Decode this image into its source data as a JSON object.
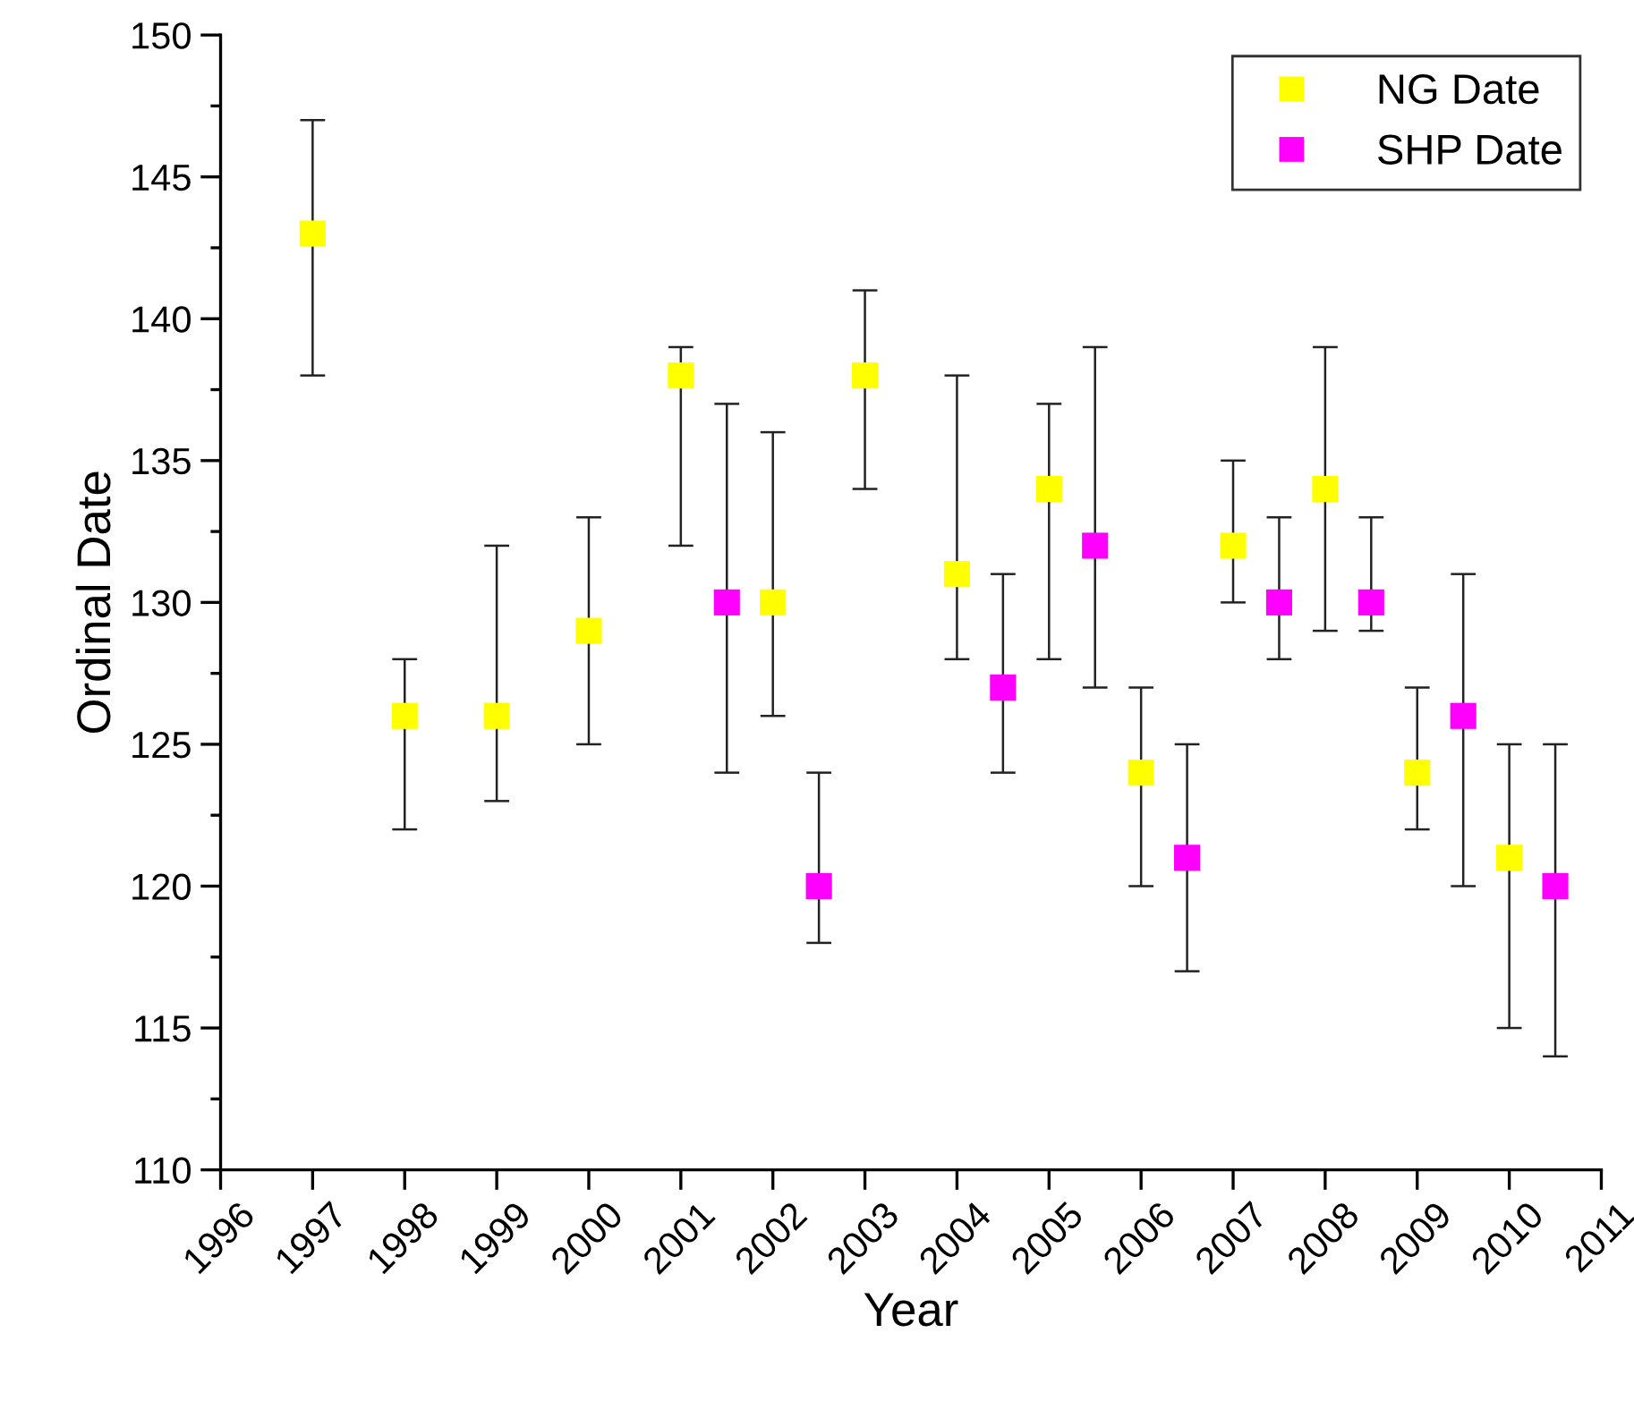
{
  "chart_data": {
    "type": "scatter",
    "xlabel": "Year",
    "ylabel": "Ordinal Date",
    "xlim": [
      1996,
      2011
    ],
    "xticks": [
      1996,
      1997,
      1998,
      1999,
      2000,
      2001,
      2002,
      2003,
      2004,
      2005,
      2006,
      2007,
      2008,
      2009,
      2010,
      2011
    ],
    "ylim": [
      110,
      150
    ],
    "yticks": [
      110,
      115,
      120,
      125,
      130,
      135,
      140,
      145,
      150
    ],
    "grid": false,
    "legend": "top right",
    "marker": "square",
    "series": [
      {
        "name": "NG Date",
        "color": "#ffff00",
        "x": [
          1997,
          1998,
          1999,
          2000,
          2001,
          2002,
          2003,
          2004,
          2005,
          2006,
          2007,
          2008,
          2009,
          2010
        ],
        "values": [
          143,
          126,
          126,
          129,
          138,
          130,
          138,
          131,
          134,
          124,
          132,
          134,
          124,
          121
        ],
        "errors": [
          [
            138,
            147
          ],
          [
            122,
            128
          ],
          [
            123,
            132
          ],
          [
            125,
            133
          ],
          [
            132,
            139
          ],
          [
            126,
            136
          ],
          [
            134,
            141
          ],
          [
            128,
            138
          ],
          [
            128,
            137
          ],
          [
            120,
            127
          ],
          [
            130,
            135
          ],
          [
            129,
            139
          ],
          [
            122,
            127
          ],
          [
            115,
            125
          ]
        ]
      },
      {
        "name": "SHP Date",
        "color": "#ff00ff",
        "x": [
          2001.5,
          2002.5,
          2004.5,
          2005.5,
          2006.5,
          2007.5,
          2008.5,
          2009.5,
          2010.5
        ],
        "values": [
          130,
          120,
          127,
          132,
          121,
          130,
          130,
          126,
          120
        ],
        "errors": [
          [
            124,
            137
          ],
          [
            118,
            124
          ],
          [
            124,
            131
          ],
          [
            127,
            139
          ],
          [
            117,
            125
          ],
          [
            128,
            133
          ],
          [
            129,
            133
          ],
          [
            120,
            131
          ],
          [
            114,
            125
          ]
        ]
      }
    ]
  }
}
